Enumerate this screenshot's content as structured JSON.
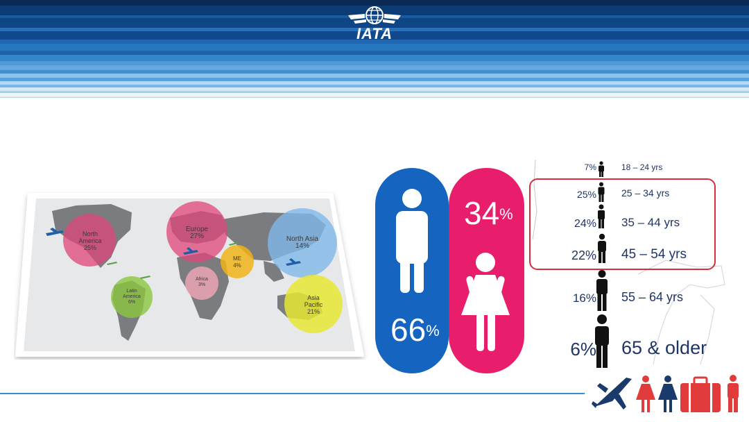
{
  "header": {
    "logo_text": "IATA"
  },
  "map": {
    "regions": [
      {
        "name": "North\nAmerica",
        "line1": "North",
        "line2": "America",
        "pct": "25%",
        "color": "#e0457a"
      },
      {
        "name": "Europe",
        "line1": "Europe",
        "line2": "",
        "pct": "27%",
        "color": "#e0457a"
      },
      {
        "name": "North Asia",
        "line1": "North Asia",
        "line2": "",
        "pct": "14%",
        "color": "#7fb8e8"
      },
      {
        "name": "ME",
        "line1": "ME",
        "line2": "",
        "pct": "4%",
        "color": "#f0b41a"
      },
      {
        "name": "Africa",
        "line1": "Africa",
        "line2": "",
        "pct": "3%",
        "color": "#f2a6b8"
      },
      {
        "name": "Latin America",
        "line1": "Latin",
        "line2": "America",
        "pct": "6%",
        "color": "#8cc63f"
      },
      {
        "name": "Asia Pacific",
        "line1": "Asia",
        "line2": "Pacific",
        "pct": "21%",
        "color": "#e6e634"
      }
    ]
  },
  "gender": {
    "male_pct": "66",
    "female_pct": "34",
    "pct_symbol": "%",
    "male_color": "#1565c0",
    "female_color": "#e81e6c"
  },
  "age": {
    "rows": [
      {
        "pct": "7%",
        "label": "18 – 24 yrs"
      },
      {
        "pct": "25%",
        "label": "25 – 34 yrs"
      },
      {
        "pct": "24%",
        "label": "35 – 44 yrs"
      },
      {
        "pct": "22%",
        "label": "45 – 54 yrs"
      },
      {
        "pct": "16%",
        "label": "55 – 64 yrs"
      },
      {
        "pct": "6%",
        "label": "65 & older"
      }
    ],
    "highlight_color": "#d62e3a",
    "text_color": "#1f3566"
  },
  "bottom_icons": [
    "airplane-icon",
    "woman-icon",
    "woman-icon",
    "suitcase-icon",
    "man-icon"
  ]
}
